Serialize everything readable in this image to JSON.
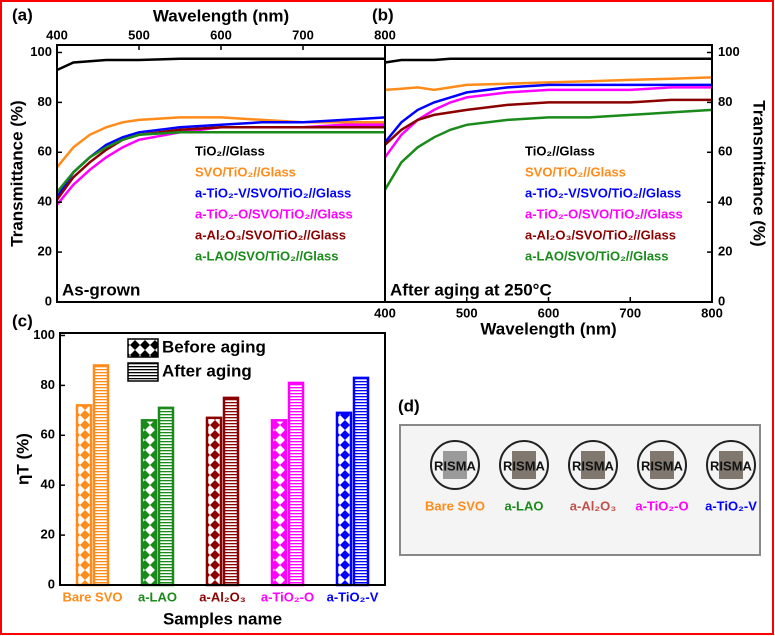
{
  "chart_data": [
    {
      "type": "line",
      "panel_label": "(a)",
      "annotation": "As-grown",
      "xlabel": "Wavelength (nm)",
      "ylabel": "Transmittance (%)",
      "x_axis_position": "top",
      "y_axis_position": "left",
      "x": [
        400,
        420,
        440,
        460,
        480,
        500,
        550,
        600,
        650,
        700,
        750,
        800
      ],
      "xlim": [
        400,
        800
      ],
      "xticks": [
        400,
        500,
        600,
        700,
        800
      ],
      "ylim": [
        0,
        103
      ],
      "yticks": [
        0,
        20,
        40,
        60,
        80,
        100
      ],
      "series": [
        {
          "name": "TiO₂//Glass",
          "color": "#000000",
          "values": [
            93,
            96,
            96.5,
            97,
            97,
            97,
            97.5,
            97.5,
            97.5,
            97.5,
            97.5,
            97.5
          ]
        },
        {
          "name": "SVO/TiO₂//Glass",
          "color": "#ff8c1a",
          "values": [
            54,
            62,
            67,
            70,
            72,
            73,
            74,
            74,
            73,
            72,
            72,
            72
          ]
        },
        {
          "name": "a-TiO₂-V/SVO/TiO₂//Glass",
          "color": "#0000ff",
          "values": [
            42,
            52,
            58,
            63,
            66,
            68,
            70,
            71,
            72,
            72,
            73,
            74
          ]
        },
        {
          "name": "a-TiO₂-O/SVO/TiO₂//Glass",
          "color": "#ff00ff",
          "values": [
            39,
            47,
            53,
            58,
            62,
            65,
            68,
            70,
            70,
            70,
            71,
            71
          ]
        },
        {
          "name": "a-Al₂O₃/SVO/TiO₂//Glass",
          "color": "#8b0000",
          "values": [
            41,
            50,
            56,
            61,
            65,
            67,
            69,
            70,
            70,
            70,
            70,
            70
          ]
        },
        {
          "name": "a-LAO/SVO/TiO₂//Glass",
          "color": "#1a8a1a",
          "values": [
            44,
            52,
            58,
            62,
            65,
            67,
            68,
            68,
            68,
            68,
            68,
            68
          ]
        }
      ]
    },
    {
      "type": "line",
      "panel_label": "(b)",
      "annotation": "After aging at 250°C",
      "xlabel": "Wavelength (nm)",
      "ylabel": "Transmittance (%)",
      "x_axis_position": "bottom",
      "y_axis_position": "right",
      "x": [
        400,
        420,
        440,
        460,
        480,
        500,
        550,
        600,
        650,
        700,
        750,
        800
      ],
      "xlim": [
        400,
        800
      ],
      "xticks": [
        400,
        500,
        600,
        700,
        800
      ],
      "ylim": [
        0,
        103
      ],
      "yticks": [
        0,
        20,
        40,
        60,
        80,
        100
      ],
      "series": [
        {
          "name": "TiO₂//Glass",
          "color": "#000000",
          "values": [
            96,
            97,
            97,
            97,
            97.5,
            97.5,
            97.5,
            97.5,
            97.5,
            97.5,
            97.5,
            97.5
          ]
        },
        {
          "name": "SVO/TiO₂//Glass",
          "color": "#ff8c1a",
          "values": [
            85,
            85.5,
            86,
            85,
            86,
            87,
            87.5,
            88,
            88.5,
            89,
            89.5,
            90
          ]
        },
        {
          "name": "a-TiO₂-V/SVO/TiO₂//Glass",
          "color": "#0000ff",
          "values": [
            64,
            72,
            77,
            80,
            82,
            84,
            86,
            87,
            87,
            87,
            87,
            87
          ]
        },
        {
          "name": "a-TiO₂-O/SVO/TiO₂//Glass",
          "color": "#ff00ff",
          "values": [
            58,
            67,
            73,
            77,
            80,
            82,
            84,
            85,
            85,
            85,
            86,
            86
          ]
        },
        {
          "name": "a-Al₂O₃/SVO/TiO₂//Glass",
          "color": "#8b0000",
          "values": [
            63,
            69,
            73,
            75,
            76,
            77,
            79,
            80,
            80,
            80,
            81,
            81
          ]
        },
        {
          "name": "a-LAO/SVO/TiO₂//Glass",
          "color": "#1a8a1a",
          "values": [
            45,
            56,
            62,
            66,
            69,
            71,
            73,
            74,
            74,
            75,
            76,
            77
          ]
        }
      ]
    },
    {
      "type": "bar",
      "panel_label": "(c)",
      "xlabel": "Samples name",
      "ylabel": "ηT (%)",
      "categories": [
        "Bare SVO",
        "a-LAO",
        "a-Al₂O₃",
        "a-TiO₂-O",
        "a-TiO₂-V"
      ],
      "category_colors": [
        "#ff8c1a",
        "#1a8a1a",
        "#8b0000",
        "#ff00ff",
        "#0000ff"
      ],
      "ylim": [
        0,
        101
      ],
      "yticks": [
        0,
        20,
        40,
        60,
        80,
        100
      ],
      "series": [
        {
          "name": "Before aging",
          "pattern": "diamond",
          "values": [
            72,
            66,
            67,
            66,
            69
          ]
        },
        {
          "name": "After aging",
          "pattern": "stripes",
          "values": [
            88,
            71,
            75,
            81,
            83
          ]
        }
      ]
    }
  ],
  "photo": {
    "panel_label": "(d)",
    "logo_text": "RISMA",
    "samples": [
      "Bare SVO",
      "a-LAO",
      "a-Al₂O₃",
      "a-TiO₂-O",
      "a-TiO₂-V"
    ],
    "colors": [
      "#ff8c1a",
      "#1a8a1a",
      "#c0504d",
      "#ff00ff",
      "#0000ff"
    ]
  }
}
